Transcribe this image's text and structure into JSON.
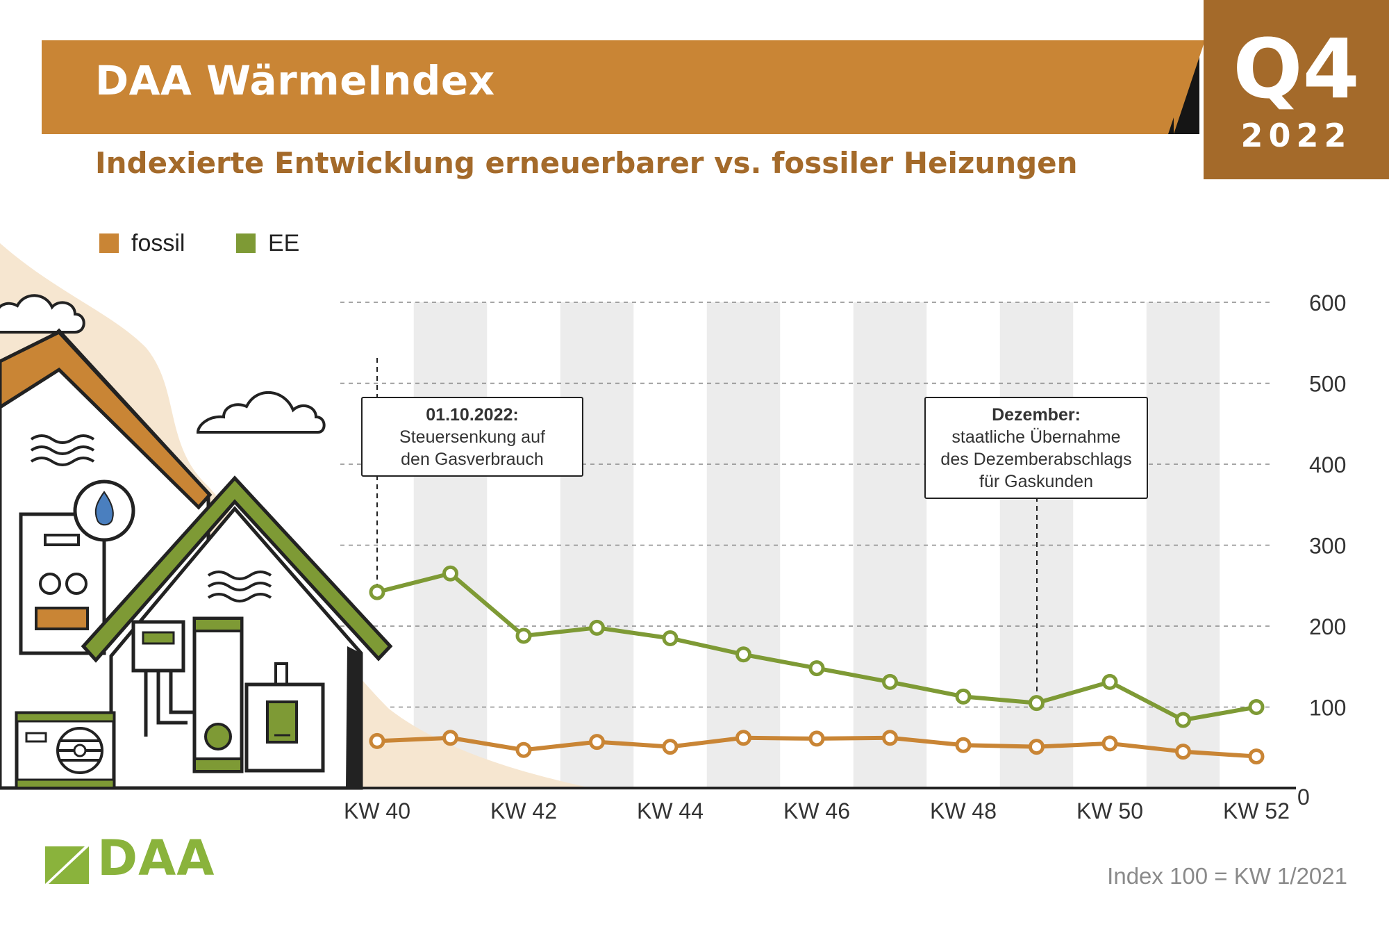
{
  "header": {
    "title": "DAA WärmeIndex",
    "subtitle": "Indexierte Entwicklung erneuerbarer vs. fossiler Heizungen",
    "badge_quarter": "Q4",
    "badge_year": "2022"
  },
  "colors": {
    "banner": "#c98535",
    "badge": "#a46a2a",
    "fossil": "#c98535",
    "ee": "#7e9a35",
    "logo": "#8ab33c",
    "band": "#ececec"
  },
  "icons": {
    "houses": "houses-illustration",
    "clouds": "cloud-icon",
    "flame": "flame-icon",
    "logo": "daa-logo-mark"
  },
  "chart_data": {
    "type": "line",
    "title": "Indexierte Entwicklung erneuerbarer vs. fossiler Heizungen",
    "x": [
      "KW 40",
      "KW 41",
      "KW 42",
      "KW 43",
      "KW 44",
      "KW 45",
      "KW 46",
      "KW 47",
      "KW 48",
      "KW 49",
      "KW 50",
      "KW 51",
      "KW 52"
    ],
    "x_tick_labels": [
      "KW 40",
      "KW 42",
      "KW 44",
      "KW 46",
      "KW 48",
      "KW 50",
      "KW 52"
    ],
    "y_ticks": [
      0,
      100,
      200,
      300,
      400,
      500,
      600
    ],
    "ylim": [
      0,
      600
    ],
    "series": [
      {
        "name": "fossil",
        "values": [
          58,
          62,
          47,
          57,
          51,
          62,
          61,
          62,
          53,
          51,
          55,
          45,
          39
        ]
      },
      {
        "name": "EE",
        "values": [
          242,
          265,
          188,
          198,
          185,
          165,
          148,
          131,
          113,
          105,
          131,
          84,
          100
        ]
      }
    ],
    "legend": [
      "fossil",
      "EE"
    ],
    "legend_position": "top-left",
    "gridlines": "dashed-horizontal",
    "annotations": [
      {
        "x": "KW 40",
        "heading": "01.10.2022:",
        "lines": [
          "Steuersenkung auf",
          "den Gasverbrauch"
        ]
      },
      {
        "x": "KW 49",
        "heading": "Dezember:",
        "lines": [
          "staatliche Übernahme",
          "des Dezemberabschlags",
          "für Gaskunden"
        ]
      }
    ]
  },
  "footer": {
    "logo_text": "DAA",
    "index_note": "Index 100 = KW 1/2021"
  }
}
